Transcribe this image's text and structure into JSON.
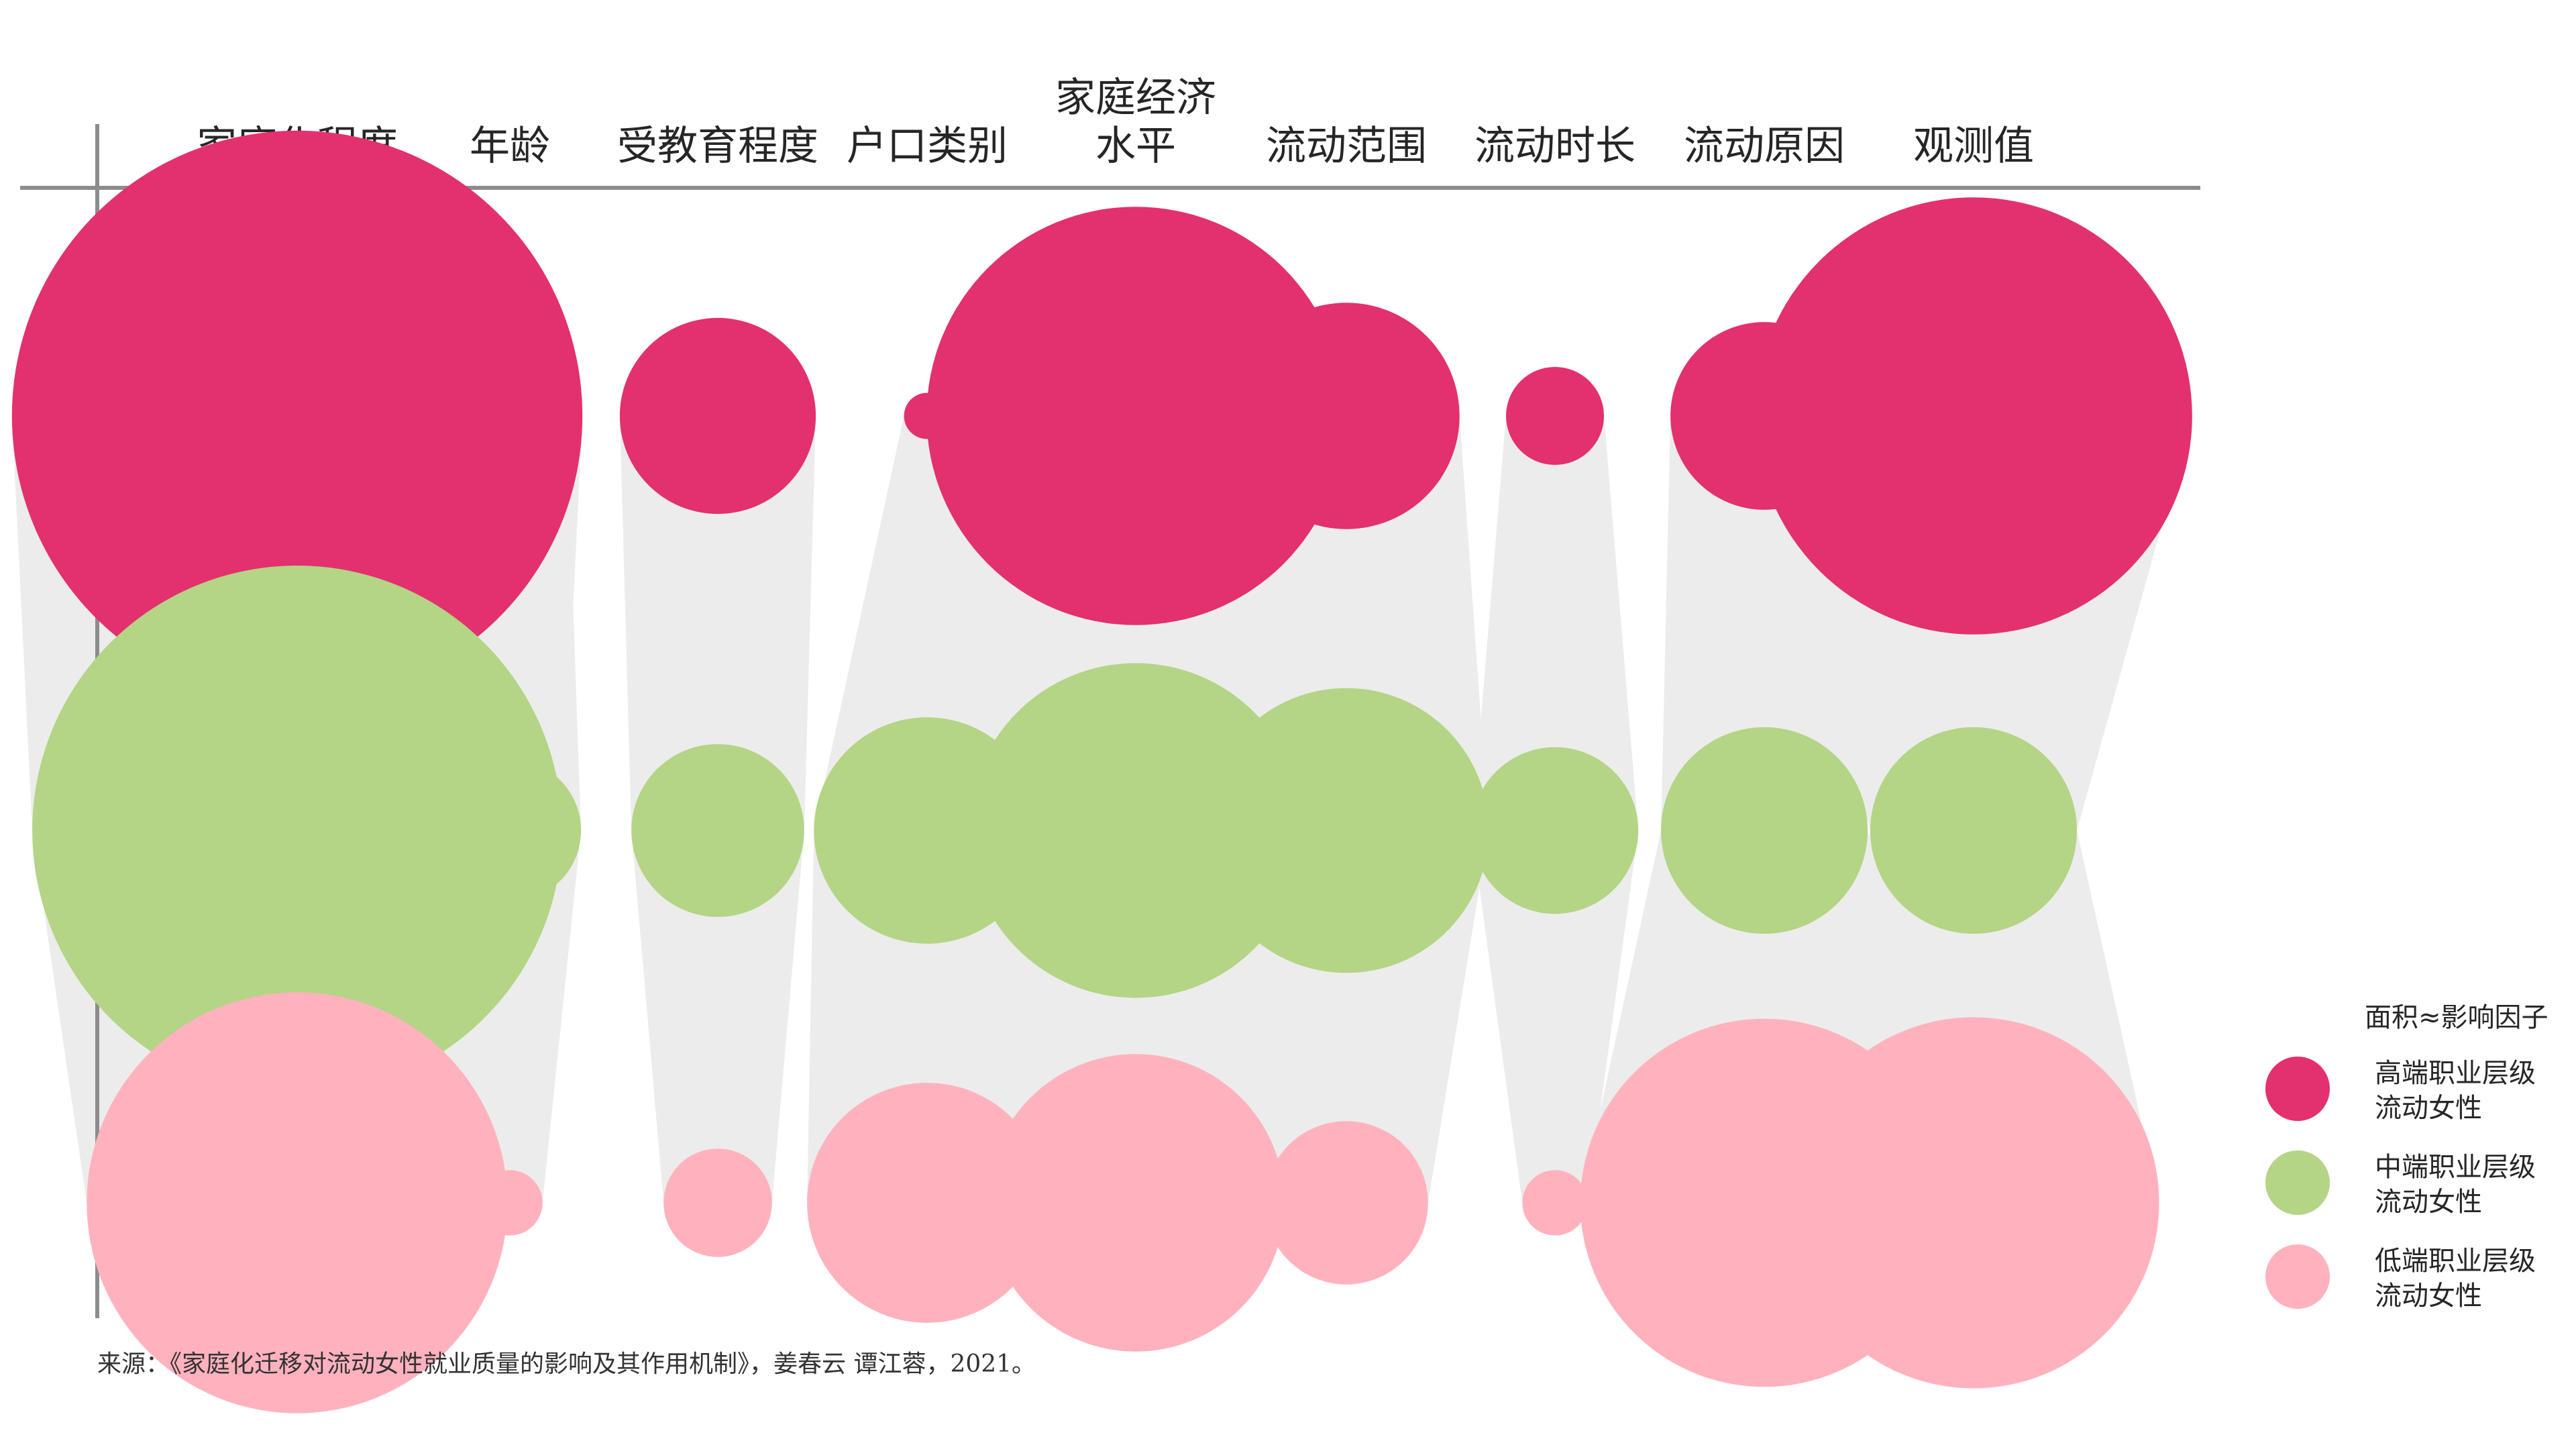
{
  "chart_data": {
    "type": "bubble",
    "categories": [
      [
        "家庭化程度"
      ],
      [
        "年龄"
      ],
      [
        "受教育程度"
      ],
      [
        "户口类别"
      ],
      [
        "家庭经济",
        "水平"
      ],
      [
        "流动范围"
      ],
      [
        "流动时长"
      ],
      [
        "流动原因"
      ],
      [
        "观测值"
      ]
    ],
    "series": [
      {
        "name": "高端职业层级流动女性",
        "legend_lines": [
          "高端职业层级",
          "流动女性"
        ],
        "color": "#E3306F",
        "values": [
          30.5,
          1.2,
          3.6,
          0.2,
          16.4,
          4.8,
          0.9,
          3.3,
          17.9
        ]
      },
      {
        "name": "中端职业层级流动女性",
        "legend_lines": [
          "中端职业层级",
          "流动女性"
        ],
        "color": "#B3D585",
        "values": [
          26.3,
          1.9,
          2.8,
          4.8,
          10.5,
          7.6,
          2.6,
          4.0,
          4.0
        ]
      },
      {
        "name": "低端职业层级流动女性",
        "legend_lines": [
          "低端职业层级",
          "流动女性"
        ],
        "color": "#FFB2BE",
        "values": [
          16.6,
          0.4,
          1.1,
          5.4,
          8.3,
          2.5,
          0.4,
          12.7,
          12.9
        ]
      }
    ],
    "size_encoding": "面积≈影响因子",
    "connector_color": "#ECECEC",
    "axis_color": "#8C8C8C",
    "legend_position": "right",
    "grid": false
  },
  "legend": {
    "title": "面积≈影响因子"
  },
  "source": {
    "text": "来源：《家庭化迁移对流动女性就业质量的影响及其作用机制》，姜春云 谭江蓉，2021。"
  }
}
